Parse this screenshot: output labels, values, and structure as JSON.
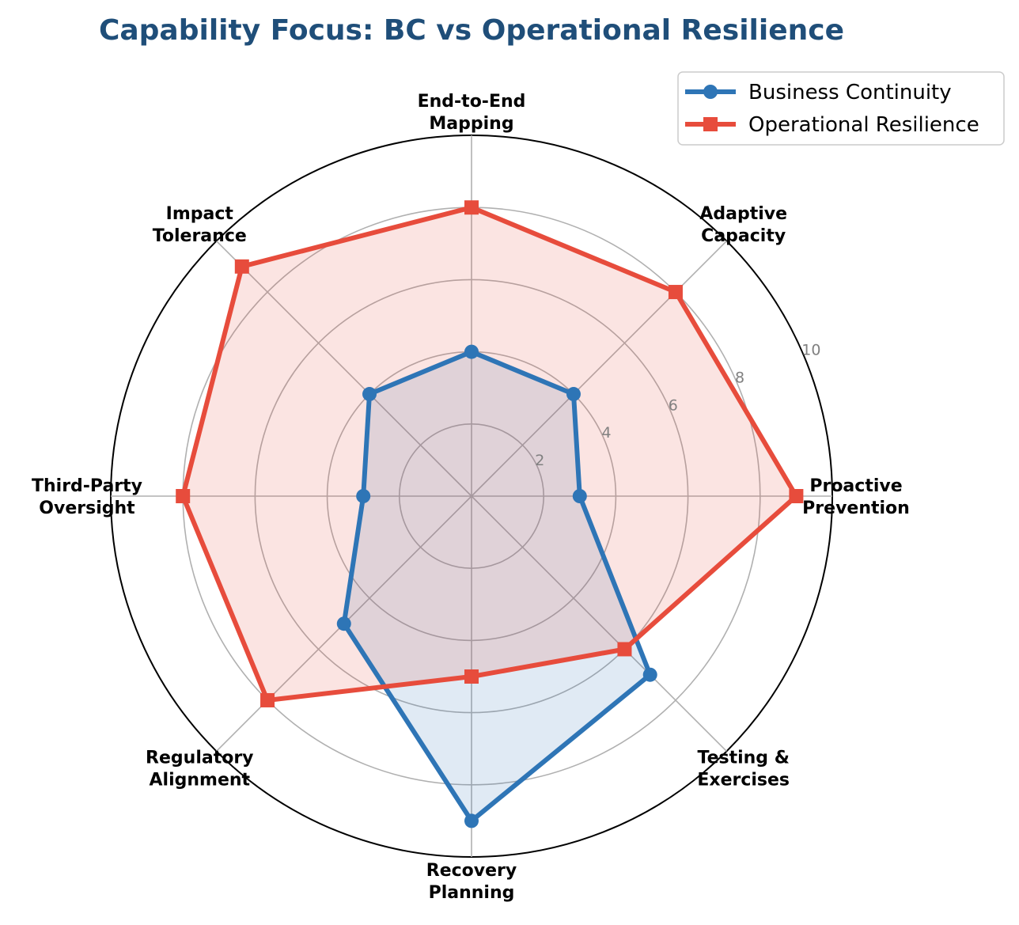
{
  "chart_data": {
    "type": "radar",
    "title": "Capability Focus: BC vs Operational Resilience",
    "categories": [
      [
        "Proactive",
        "Prevention"
      ],
      [
        "Adaptive",
        "Capacity"
      ],
      [
        "End-to-End",
        "Mapping"
      ],
      [
        "Impact",
        "Tolerance"
      ],
      [
        "Third-Party",
        "Oversight"
      ],
      [
        "Regulatory",
        "Alignment"
      ],
      [
        "Recovery",
        "Planning"
      ],
      [
        "Testing &",
        "Exercises"
      ]
    ],
    "rlim": [
      0,
      10
    ],
    "rticks": [
      "2",
      "4",
      "6",
      "8",
      "10"
    ],
    "rtick_values": [
      2,
      4,
      6,
      8,
      10
    ],
    "grid": true,
    "legend_position": "top-right",
    "series": [
      {
        "name": "Business Continuity",
        "values": [
          3,
          4,
          4,
          4,
          3,
          5,
          9,
          7
        ],
        "color": "#2e75b6",
        "fill": "#2e75b6",
        "fill_opacity": 0.15,
        "marker": "circle"
      },
      {
        "name": "Operational Resilience",
        "values": [
          9,
          8,
          8,
          9,
          8,
          8,
          5,
          6
        ],
        "color": "#e74c3c",
        "fill": "#e74c3c",
        "fill_opacity": 0.15,
        "marker": "square"
      }
    ]
  }
}
